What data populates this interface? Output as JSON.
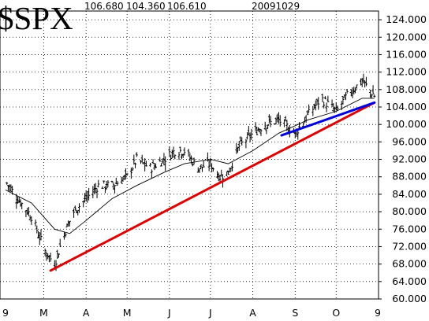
{
  "header": {
    "symbol": "$SPX",
    "open": "106.680",
    "low": "104.360",
    "close": "106.610",
    "date": "20091029"
  },
  "chart_data": {
    "type": "ohlc-bar",
    "symbol": "$SPX",
    "date": "20091029",
    "ylim": [
      60,
      126
    ],
    "y_ticks": [
      "60.000",
      "64.000",
      "68.000",
      "72.000",
      "76.000",
      "80.000",
      "84.000",
      "88.000",
      "92.000",
      "96.000",
      "100.000",
      "104.000",
      "108.000",
      "112.000",
      "116.000",
      "120.000",
      "124.000"
    ],
    "x_ticks": [
      "9",
      "M",
      "A",
      "M",
      "J",
      "J",
      "A",
      "S",
      "O",
      "9"
    ],
    "grid": true,
    "series": [
      {
        "name": "",
        "kind": "price",
        "x": [
          "2009-02-01",
          "2009-02-10",
          "2009-02-20",
          "2009-03-02",
          "2009-03-09",
          "2009-03-16",
          "2009-03-23",
          "2009-04-01",
          "2009-04-10",
          "2009-04-20",
          "2009-05-01",
          "2009-05-08",
          "2009-05-18",
          "2009-05-28",
          "2009-06-05",
          "2009-06-12",
          "2009-06-22",
          "2009-07-01",
          "2009-07-08",
          "2009-07-14",
          "2009-07-22",
          "2009-08-01",
          "2009-08-10",
          "2009-08-20",
          "2009-09-01",
          "2009-09-10",
          "2009-09-20",
          "2009-10-01",
          "2009-10-10",
          "2009-10-20",
          "2009-10-29"
        ],
        "y": [
          87,
          83,
          79,
          71,
          68,
          75,
          80,
          83,
          86,
          86,
          88,
          92,
          90,
          92,
          94,
          94,
          90,
          91,
          88,
          89,
          95,
          98,
          100,
          101,
          98,
          102,
          106,
          103,
          107,
          110,
          106.6
        ]
      },
      {
        "name": "",
        "kind": "moving-average",
        "x": [
          "2009-02-01",
          "2009-02-20",
          "2009-03-09",
          "2009-03-20",
          "2009-04-01",
          "2009-04-20",
          "2009-05-08",
          "2009-05-28",
          "2009-06-12",
          "2009-07-01",
          "2009-07-14",
          "2009-08-01",
          "2009-08-20",
          "2009-09-10",
          "2009-10-01",
          "2009-10-20",
          "2009-10-29"
        ],
        "y": [
          85,
          82,
          76,
          75,
          78,
          83,
          86,
          89,
          91,
          92,
          91,
          94,
          98,
          101,
          103,
          106,
          106
        ]
      }
    ],
    "trendlines": [
      {
        "color": "#e00000",
        "x": [
          "2009-03-06",
          "2009-10-29"
        ],
        "y": [
          66.5,
          105
        ]
      },
      {
        "color": "#0000dd",
        "x": [
          "2009-08-22",
          "2009-10-29"
        ],
        "y": [
          97.5,
          105
        ]
      }
    ]
  }
}
